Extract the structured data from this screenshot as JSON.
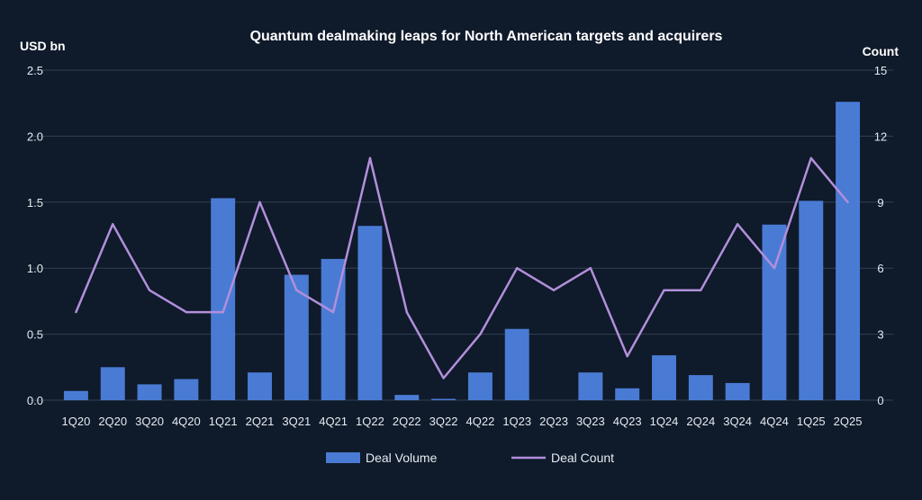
{
  "chart_data": {
    "type": "bar",
    "title": "Quantum dealmaking leaps for North American targets and acquirers",
    "ylabel_left": "USD bn",
    "ylabel_right": "Count",
    "categories": [
      "1Q20",
      "2Q20",
      "3Q20",
      "4Q20",
      "1Q21",
      "2Q21",
      "3Q21",
      "4Q21",
      "1Q22",
      "2Q22",
      "3Q22",
      "4Q22",
      "1Q23",
      "2Q23",
      "3Q23",
      "4Q23",
      "1Q24",
      "2Q24",
      "3Q24",
      "4Q24",
      "1Q25",
      "2Q25"
    ],
    "ylim_left": [
      0,
      2.5
    ],
    "ylim_right": [
      0,
      15
    ],
    "yticks_left": [
      "0.0",
      "0.5",
      "1.0",
      "1.5",
      "2.0",
      "2.5"
    ],
    "yticks_right": [
      "0",
      "3",
      "6",
      "9",
      "12",
      "15"
    ],
    "series": [
      {
        "name": "Deal Volume",
        "type": "bar",
        "axis": "left",
        "color": "#4a7bd4",
        "values": [
          0.07,
          0.25,
          0.12,
          0.16,
          1.53,
          0.21,
          0.95,
          1.07,
          1.32,
          0.04,
          0.01,
          0.21,
          0.54,
          0.0,
          0.21,
          0.09,
          0.34,
          0.19,
          0.13,
          1.33,
          1.51,
          2.26
        ]
      },
      {
        "name": "Deal Count",
        "type": "line",
        "axis": "right",
        "color": "#b28fdb",
        "values": [
          4,
          8,
          5,
          4,
          4,
          9,
          5,
          4,
          11,
          4,
          1,
          3,
          6,
          5,
          6,
          2,
          5,
          5,
          8,
          6,
          11,
          9
        ]
      }
    ],
    "legend": [
      "Deal Volume",
      "Deal Count"
    ],
    "grid": true
  }
}
